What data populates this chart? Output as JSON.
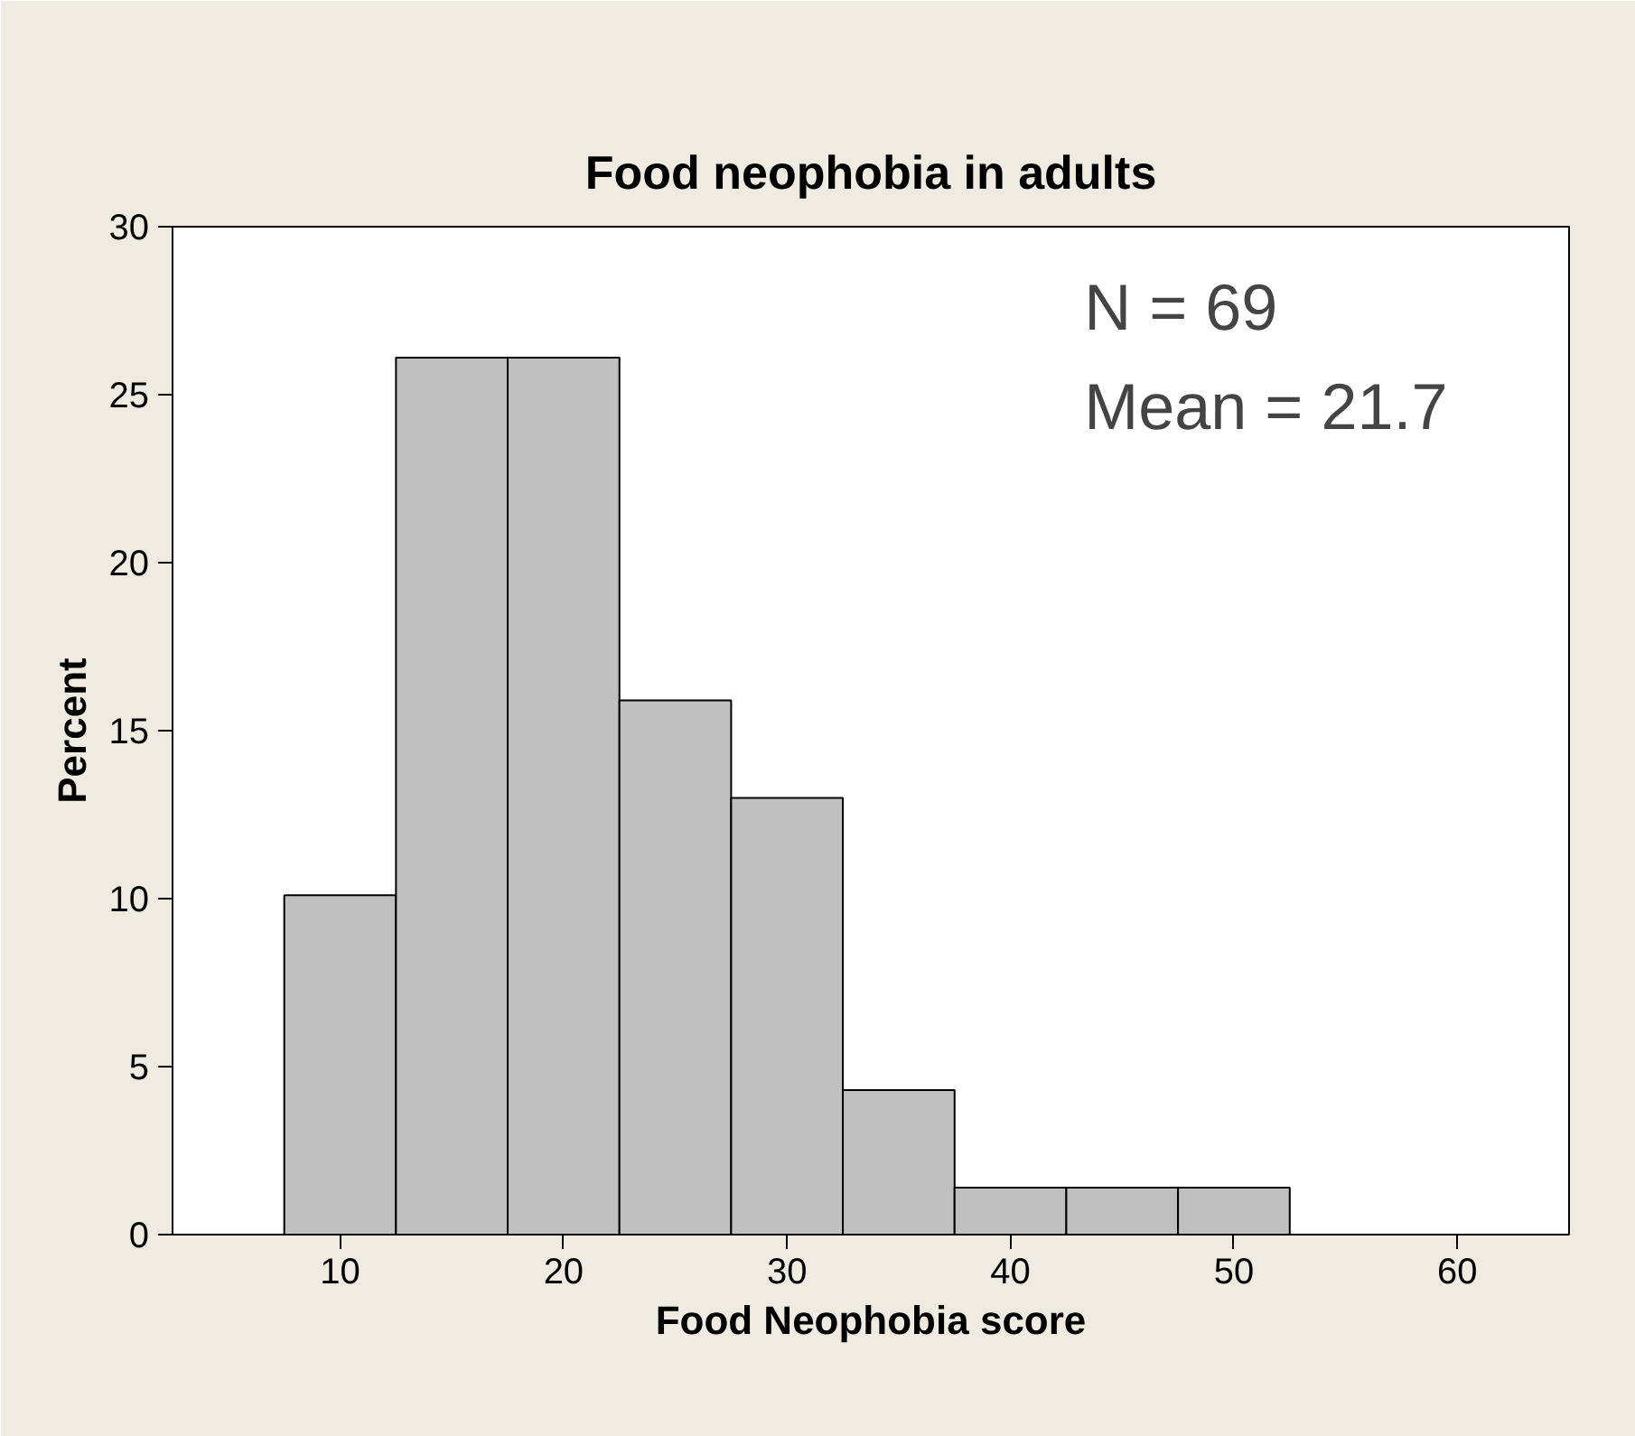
{
  "chart_data": {
    "type": "histogram",
    "title": "Food neophobia in adults",
    "xlabel": "Food Neophobia score",
    "ylabel": "Percent",
    "bins": [
      7.5,
      12.5,
      17.5,
      22.5,
      27.5,
      32.5,
      37.5,
      42.5,
      47.5,
      52.5
    ],
    "values": [
      10.1,
      26.1,
      26.1,
      15.9,
      13.0,
      4.3,
      1.4,
      1.4,
      1.4
    ],
    "color": "#c0c0c0",
    "xlim": [
      2.5,
      65
    ],
    "xticks": [
      10,
      20,
      30,
      40,
      50,
      60
    ],
    "ylim": [
      0,
      30
    ],
    "yticks": [
      0,
      5,
      10,
      15,
      20,
      25,
      30
    ],
    "grid": false,
    "annotations": [
      "N = 69",
      "Mean = 21.7"
    ]
  }
}
